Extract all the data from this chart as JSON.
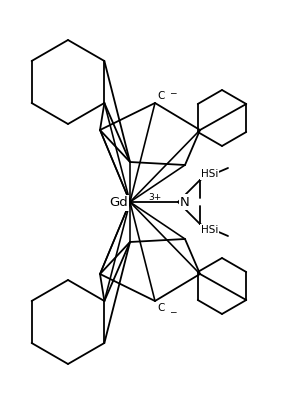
{
  "bg_color": "#ffffff",
  "line_color": "#000000",
  "line_width": 1.3,
  "fig_width": 2.82,
  "fig_height": 4.05,
  "dpi": 100,
  "gd_label": "Gd",
  "gd_superscript": "3+",
  "n_label": "N",
  "hsi_upper": "HSi",
  "hsi_lower": "HSi",
  "c_upper_label": "C",
  "c_lower_label": "C"
}
